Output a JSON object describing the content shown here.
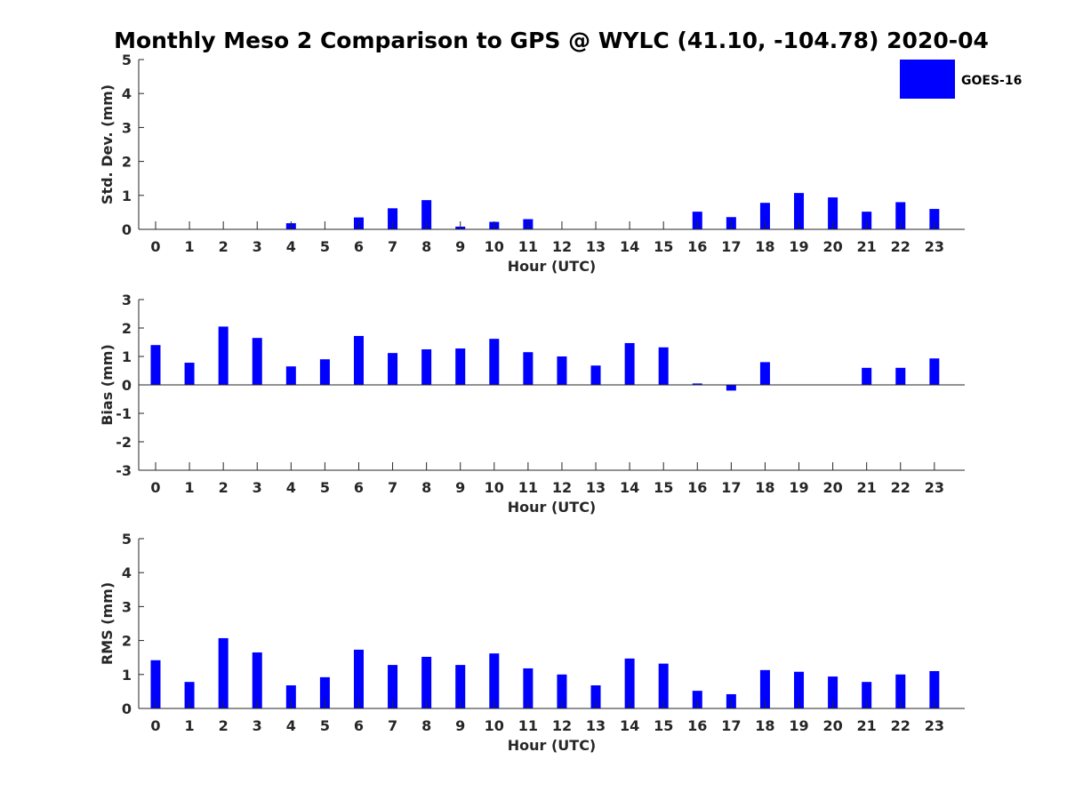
{
  "colors": {
    "bar": "#0000ff",
    "axis": "#262626"
  },
  "chart_data": {
    "title": "Monthly Meso 2 Comparison to GPS @ WYLC (41.10, -104.78) 2020-04",
    "type": "bar",
    "legend": {
      "placement": "top-right",
      "entries": [
        "GOES-16"
      ]
    },
    "categories": [
      "0",
      "1",
      "2",
      "3",
      "4",
      "5",
      "6",
      "7",
      "8",
      "9",
      "10",
      "11",
      "12",
      "13",
      "14",
      "15",
      "16",
      "17",
      "18",
      "19",
      "20",
      "21",
      "22",
      "23"
    ],
    "panels": [
      {
        "ylabel": "Std. Dev. (mm)",
        "xlabel": "Hour (UTC)",
        "ylim": [
          0,
          5
        ],
        "yticks": [
          "0",
          "1",
          "2",
          "3",
          "4",
          "5"
        ],
        "values": [
          0,
          0,
          0,
          0,
          0.18,
          0,
          0.35,
          0.62,
          0.86,
          0.08,
          0.22,
          0.3,
          0,
          0,
          0,
          0,
          0.52,
          0.36,
          0.78,
          1.07,
          0.94,
          0.52,
          0.8,
          0.6
        ]
      },
      {
        "ylabel": "Bias (mm)",
        "xlabel": "Hour (UTC)",
        "ylim": [
          -3,
          3
        ],
        "yticks": [
          "-3",
          "-2",
          "-1",
          "0",
          "1",
          "2",
          "3"
        ],
        "values": [
          1.4,
          0.78,
          2.05,
          1.65,
          0.65,
          0.9,
          1.72,
          1.12,
          1.25,
          1.28,
          1.62,
          1.15,
          1.0,
          0.68,
          1.47,
          1.32,
          0.05,
          -0.2,
          0.8,
          0,
          0,
          0.6,
          0.6,
          0.93
        ]
      },
      {
        "ylabel": "RMS (mm)",
        "xlabel": "Hour (UTC)",
        "ylim": [
          0,
          5
        ],
        "yticks": [
          "0",
          "1",
          "2",
          "3",
          "4",
          "5"
        ],
        "values": [
          1.42,
          0.78,
          2.07,
          1.65,
          0.68,
          0.92,
          1.73,
          1.28,
          1.52,
          1.28,
          1.62,
          1.18,
          1.0,
          0.68,
          1.47,
          1.32,
          0.52,
          0.42,
          1.13,
          1.08,
          0.94,
          0.78,
          1.0,
          1.1
        ]
      }
    ]
  }
}
